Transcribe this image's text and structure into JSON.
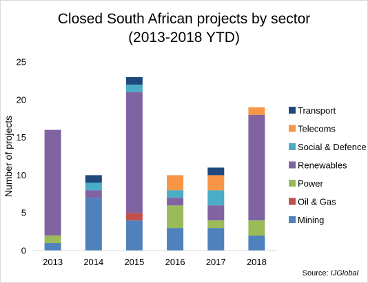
{
  "chart_data": {
    "type": "bar",
    "stacked": true,
    "title_line1": "Closed South African projects by sector",
    "title_line2": "(2013-2018 YTD)",
    "xlabel": "",
    "ylabel": "Number of projects",
    "ylim": [
      0,
      25
    ],
    "yticks": [
      0,
      5,
      10,
      15,
      20,
      25
    ],
    "grid": false,
    "legend_position": "right",
    "categories": [
      "2013",
      "2014",
      "2015",
      "2016",
      "2017",
      "2018"
    ],
    "series": [
      {
        "name": "Mining",
        "color": "#4f81bd",
        "values": [
          1,
          7,
          4,
          3,
          3,
          2
        ]
      },
      {
        "name": "Oil & Gas",
        "color": "#c0504d",
        "values": [
          0,
          0,
          1,
          0,
          0,
          0
        ]
      },
      {
        "name": "Power",
        "color": "#9bbb59",
        "values": [
          1,
          0,
          0,
          3,
          1,
          2
        ]
      },
      {
        "name": "Renewables",
        "color": "#8064a2",
        "values": [
          14,
          1,
          16,
          1,
          2,
          14
        ]
      },
      {
        "name": "Social & Defence",
        "color": "#4bacc6",
        "values": [
          0,
          1,
          1,
          1,
          2,
          0
        ]
      },
      {
        "name": "Telecoms",
        "color": "#f79646",
        "values": [
          0,
          0,
          0,
          2,
          2,
          1
        ]
      },
      {
        "name": "Transport",
        "color": "#1f497d",
        "values": [
          0,
          1,
          1,
          0,
          1,
          0
        ]
      }
    ]
  },
  "source": {
    "prefix": "Source: ",
    "name": "IJGlobal"
  }
}
